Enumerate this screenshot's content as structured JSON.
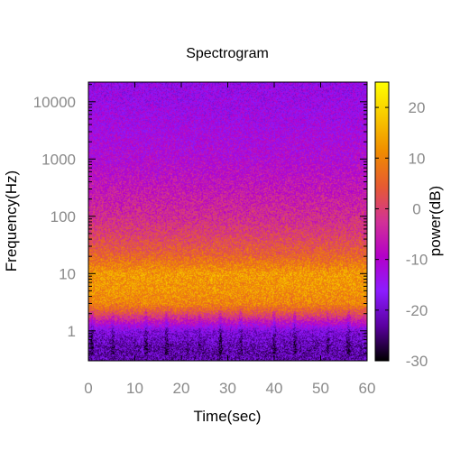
{
  "chart_data": {
    "type": "heatmap",
    "title": "Spectrogram",
    "xlabel": "Time(sec)",
    "ylabel": "Frequency(Hz)",
    "colorbar_label": "power(dB)",
    "x_range": [
      0,
      60
    ],
    "y_range": [
      0.3,
      22050
    ],
    "y_scale": "log",
    "color_range": [
      -30,
      25
    ],
    "x_ticks": [
      0,
      10,
      20,
      30,
      40,
      50,
      60
    ],
    "y_ticks": [
      1,
      10,
      100,
      1000,
      10000
    ],
    "color_ticks": [
      -30,
      -20,
      -10,
      0,
      10,
      20
    ],
    "colormap": [
      "#000000",
      "#5a00a0",
      "#8c1cff",
      "#b400c8",
      "#d23296",
      "#e65a32",
      "#f08c00",
      "#f8c800",
      "#ffff00"
    ],
    "power_profile": [
      {
        "frequency_hz": 0.5,
        "power_db": -22
      },
      {
        "frequency_hz": 1,
        "power_db": -18
      },
      {
        "frequency_hz": 2,
        "power_db": 2
      },
      {
        "frequency_hz": 3,
        "power_db": 10
      },
      {
        "frequency_hz": 5,
        "power_db": 12
      },
      {
        "frequency_hz": 10,
        "power_db": 13
      },
      {
        "frequency_hz": 20,
        "power_db": 6
      },
      {
        "frequency_hz": 50,
        "power_db": 0
      },
      {
        "frequency_hz": 100,
        "power_db": -3
      },
      {
        "frequency_hz": 500,
        "power_db": -8
      },
      {
        "frequency_hz": 1000,
        "power_db": -10
      },
      {
        "frequency_hz": 5000,
        "power_db": -13
      },
      {
        "frequency_hz": 20000,
        "power_db": -15
      }
    ]
  }
}
